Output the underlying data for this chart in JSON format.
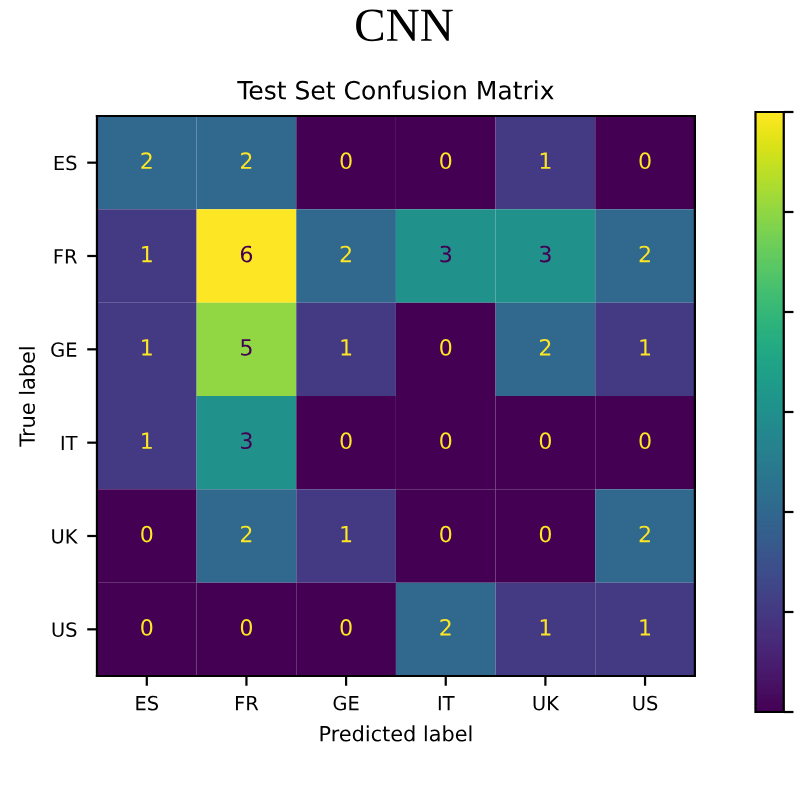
{
  "chart_data": {
    "type": "heatmap",
    "title": "CNN",
    "subtitle": "Test Set Confusion Matrix",
    "xlabel": "Predicted label",
    "ylabel": "True label",
    "categories": [
      "ES",
      "FR",
      "GE",
      "IT",
      "UK",
      "US"
    ],
    "y_categories": [
      "ES",
      "FR",
      "GE",
      "IT",
      "UK",
      "US"
    ],
    "cells": [
      [
        2,
        2,
        0,
        0,
        1,
        0
      ],
      [
        1,
        6,
        2,
        3,
        3,
        2
      ],
      [
        1,
        5,
        1,
        0,
        2,
        1
      ],
      [
        1,
        3,
        0,
        0,
        0,
        0
      ],
      [
        0,
        2,
        1,
        0,
        0,
        2
      ],
      [
        0,
        0,
        0,
        2,
        1,
        1
      ]
    ],
    "data_labels": true
  }
}
